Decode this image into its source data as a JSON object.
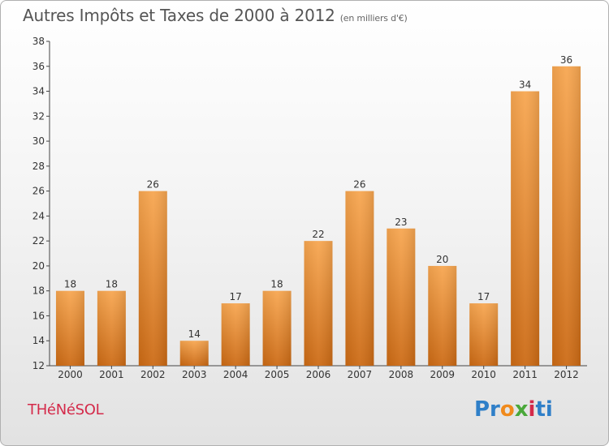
{
  "header": {
    "title": "Autres Impôts et Taxes de 2000 à 2012",
    "subtitle": "(en milliers d'€)"
  },
  "footer": {
    "commune": "THéNéSOL",
    "logo_parts": [
      "Pr",
      "o",
      "x",
      "i",
      "ti"
    ]
  },
  "colors": {
    "bar_top": "#f7a650",
    "bar_bottom": "#cc6a14",
    "title": "#555555",
    "commune": "#d42a4a"
  },
  "chart_data": {
    "type": "bar",
    "title": "Autres Impôts et Taxes de 2000 à 2012",
    "subtitle": "(en milliers d'€)",
    "categories": [
      "2000",
      "2001",
      "2002",
      "2003",
      "2004",
      "2005",
      "2006",
      "2007",
      "2008",
      "2009",
      "2010",
      "2011",
      "2012"
    ],
    "values": [
      18,
      18,
      26,
      14,
      17,
      18,
      22,
      26,
      23,
      20,
      17,
      34,
      36
    ],
    "ylim": [
      12,
      38
    ],
    "yticks": [
      12,
      14,
      16,
      18,
      20,
      22,
      24,
      26,
      28,
      30,
      32,
      34,
      36,
      38
    ],
    "grid": false,
    "legend": "none"
  }
}
